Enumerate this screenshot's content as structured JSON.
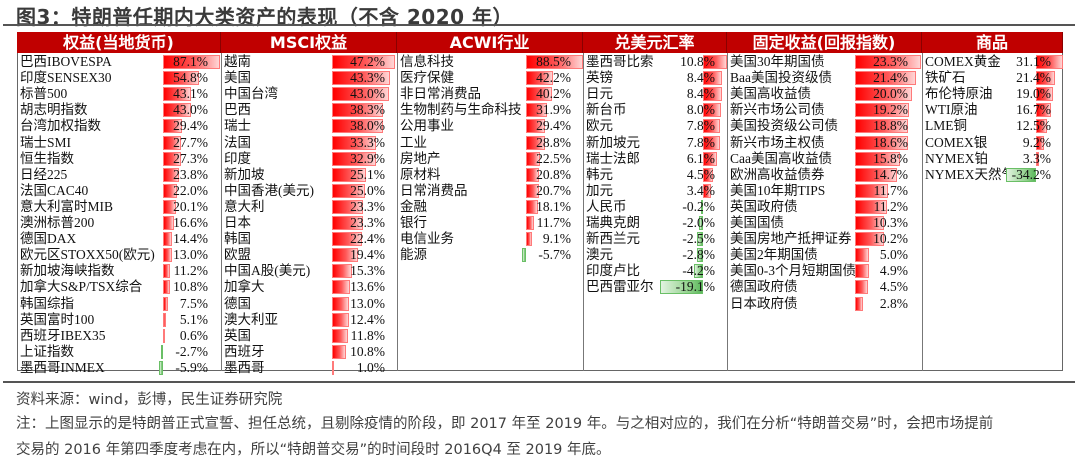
{
  "title": "图3：特朗普任期内大类资产的表现（不含 2020 年）",
  "colors": {
    "header_bg": "#c00000",
    "positive_bar": "#ff0000",
    "negative_bar": "#5cb85c"
  },
  "columns": [
    {
      "header": "权益(当地货币)",
      "rows": [
        {
          "name": "巴西IBOVESPA",
          "value": "87.1%"
        },
        {
          "name": "印度SENSEX30",
          "value": "54.8%"
        },
        {
          "name": "标普500",
          "value": "43.1%"
        },
        {
          "name": "胡志明指数",
          "value": "43.0%"
        },
        {
          "name": "台湾加权指数",
          "value": "29.4%"
        },
        {
          "name": "瑞士SMI",
          "value": "27.7%"
        },
        {
          "name": "恒生指数",
          "value": "27.3%"
        },
        {
          "name": "日经225",
          "value": "23.8%"
        },
        {
          "name": "法国CAC40",
          "value": "22.0%"
        },
        {
          "name": "意大利富时MIB",
          "value": "20.1%"
        },
        {
          "name": "澳洲标普200",
          "value": "16.6%"
        },
        {
          "name": "德国DAX",
          "value": "14.4%"
        },
        {
          "name": "欧元区STOXX50(欧元)",
          "value": "13.0%"
        },
        {
          "name": "新加坡海峡指数",
          "value": "11.2%"
        },
        {
          "name": "加拿大S&P/TSX综合",
          "value": "10.8%"
        },
        {
          "name": "韩国综指",
          "value": "7.5%"
        },
        {
          "name": "英国富时100",
          "value": "5.1%"
        },
        {
          "name": "西班牙IBEX35",
          "value": "0.6%"
        },
        {
          "name": "上证指数",
          "value": "-2.7%"
        },
        {
          "name": "墨西哥INMEX",
          "value": "-5.9%"
        }
      ]
    },
    {
      "header": "MSCI权益",
      "rows": [
        {
          "name": "越南",
          "value": "47.2%"
        },
        {
          "name": "美国",
          "value": "43.3%"
        },
        {
          "name": "中国台湾",
          "value": "43.0%"
        },
        {
          "name": "巴西",
          "value": "38.3%"
        },
        {
          "name": "瑞士",
          "value": "38.0%"
        },
        {
          "name": "法国",
          "value": "33.3%"
        },
        {
          "name": "印度",
          "value": "32.9%"
        },
        {
          "name": "新加坡",
          "value": "25.1%"
        },
        {
          "name": "中国香港(美元)",
          "value": "25.0%"
        },
        {
          "name": "意大利",
          "value": "23.3%"
        },
        {
          "name": "日本",
          "value": "23.3%"
        },
        {
          "name": "韩国",
          "value": "22.4%"
        },
        {
          "name": "欧盟",
          "value": "19.4%"
        },
        {
          "name": "中国A股(美元)",
          "value": "15.3%"
        },
        {
          "name": "加拿大",
          "value": "13.6%"
        },
        {
          "name": "德国",
          "value": "13.0%"
        },
        {
          "name": "澳大利亚",
          "value": "12.4%"
        },
        {
          "name": "英国",
          "value": "11.8%"
        },
        {
          "name": "西班牙",
          "value": "10.8%"
        },
        {
          "name": "墨西哥",
          "value": "1.0%"
        }
      ]
    },
    {
      "header": "ACWI行业",
      "rows": [
        {
          "name": "信息科技",
          "value": "88.5%"
        },
        {
          "name": "医疗保健",
          "value": "42.2%"
        },
        {
          "name": "非日常消费品",
          "value": "40.2%"
        },
        {
          "name": "生物制药与生命科技",
          "value": "31.9%"
        },
        {
          "name": "公用事业",
          "value": "29.4%"
        },
        {
          "name": "工业",
          "value": "28.8%"
        },
        {
          "name": "房地产",
          "value": "22.5%"
        },
        {
          "name": "原材料",
          "value": "20.8%"
        },
        {
          "name": "日常消费品",
          "value": "20.7%"
        },
        {
          "name": "金融",
          "value": "18.1%"
        },
        {
          "name": "银行",
          "value": "11.7%"
        },
        {
          "name": "电信业务",
          "value": "9.1%"
        },
        {
          "name": "能源",
          "value": "-5.7%"
        }
      ]
    },
    {
      "header": "兑美元汇率",
      "rows": [
        {
          "name": "墨西哥比索",
          "value": "10.8%"
        },
        {
          "name": "英镑",
          "value": "8.4%"
        },
        {
          "name": "日元",
          "value": "8.4%"
        },
        {
          "name": "新台币",
          "value": "8.0%"
        },
        {
          "name": "欧元",
          "value": "7.8%"
        },
        {
          "name": "新加坡元",
          "value": "7.8%"
        },
        {
          "name": "瑞士法郎",
          "value": "6.1%"
        },
        {
          "name": "韩元",
          "value": "4.5%"
        },
        {
          "name": "加元",
          "value": "3.4%"
        },
        {
          "name": "人民币",
          "value": "-0.2%"
        },
        {
          "name": "瑞典克朗",
          "value": "-2.0%"
        },
        {
          "name": "新西兰元",
          "value": "-2.5%"
        },
        {
          "name": "澳元",
          "value": "-2.8%"
        },
        {
          "name": "印度卢比",
          "value": "-4.2%"
        },
        {
          "name": "巴西雷亚尔",
          "value": "-19.1%"
        }
      ]
    },
    {
      "header": "固定收益(回报指数)",
      "rows": [
        {
          "name": "美国30年期国债",
          "value": "23.3%"
        },
        {
          "name": "Baa美国投资级债",
          "value": "21.4%"
        },
        {
          "name": "美国高收益债",
          "value": "20.0%"
        },
        {
          "name": "新兴市场公司债",
          "value": "19.2%"
        },
        {
          "name": "美国投资级公司债",
          "value": "18.8%"
        },
        {
          "name": "新兴市场主权债",
          "value": "18.6%"
        },
        {
          "name": "Caa美国高收益债",
          "value": "15.8%"
        },
        {
          "name": "欧洲高收益债券",
          "value": "14.7%"
        },
        {
          "name": "美国10年期TIPS",
          "value": "11.7%"
        },
        {
          "name": "英国政府债",
          "value": "11.2%"
        },
        {
          "name": "美国国债",
          "value": "10.3%"
        },
        {
          "name": "美国房地产抵押证券",
          "value": "10.2%"
        },
        {
          "name": "美国2年期国债",
          "value": "5.0%"
        },
        {
          "name": "美国0-3个月短期国债",
          "value": "4.9%"
        },
        {
          "name": "德国政府债",
          "value": "4.5%"
        },
        {
          "name": "日本政府债",
          "value": "2.8%"
        }
      ]
    },
    {
      "header": "商品",
      "rows": [
        {
          "name": "COMEX黄金",
          "value": "31.1%"
        },
        {
          "name": "铁矿石",
          "value": "21.4%"
        },
        {
          "name": "布伦特原油",
          "value": "19.0%"
        },
        {
          "name": "WTI原油",
          "value": "16.7%"
        },
        {
          "name": "LME铜",
          "value": "12.5%"
        },
        {
          "name": "COMEX银",
          "value": "9.2%"
        },
        {
          "name": "NYMEX铂",
          "value": "3.3%"
        },
        {
          "name": "NYMEX天然气",
          "value": "-34.2%"
        }
      ]
    }
  ],
  "footer": {
    "source": "资料来源：wind，彭博，民生证券研究院",
    "note_line1": "注：上图显示的是特朗普正式宣誓、担任总统，且剔除疫情的阶段，即 2017 年至 2019 年。与之相对应的，我们在分析“特朗普交易”时，会把市场提前",
    "note_line2": "交易的 2016 年第四季度考虑在内，所以“特朗普交易”的时间段时 2016Q4 至 2019 年底。"
  }
}
